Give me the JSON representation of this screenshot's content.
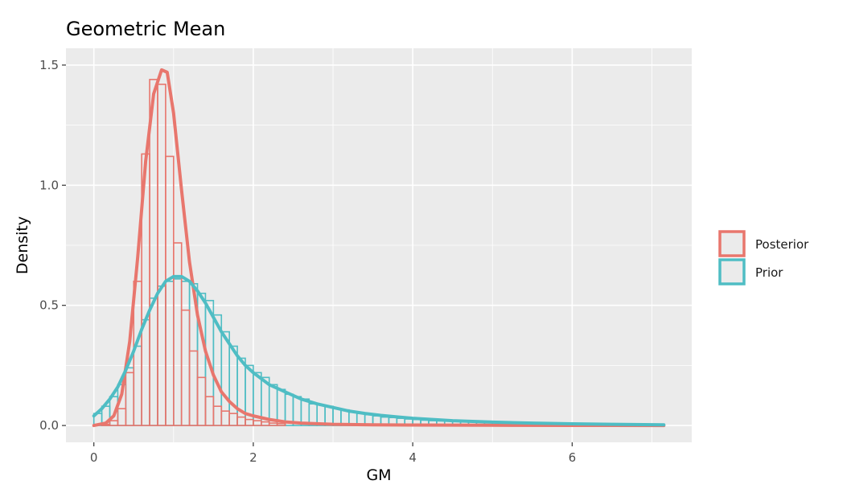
{
  "chart_data": {
    "type": "histogram-density",
    "title": "Geometric Mean",
    "xlabel": "GM",
    "ylabel": "Density",
    "xlim": [
      -0.35,
      7.5
    ],
    "ylim": [
      -0.07,
      1.57
    ],
    "x_ticks": [
      0,
      2,
      4,
      6
    ],
    "x_tick_labels": [
      "0",
      "2",
      "4",
      "6"
    ],
    "y_ticks": [
      0,
      0.5,
      1.0,
      1.5
    ],
    "y_tick_labels": [
      "0.0",
      "0.5",
      "1.0",
      "1.5"
    ],
    "grid": true,
    "legend_position": "right",
    "bin_width": 0.1,
    "series": [
      {
        "name": "Posterior",
        "color": "#E8766D",
        "hist": {
          "x0": [
            0.1,
            0.2,
            0.3,
            0.4,
            0.5,
            0.6,
            0.7,
            0.8,
            0.9,
            1.0,
            1.1,
            1.2,
            1.3,
            1.4,
            1.5,
            1.6,
            1.7,
            1.8,
            1.9,
            2.0,
            2.1,
            2.2,
            2.3
          ],
          "density": [
            0.005,
            0.02,
            0.07,
            0.22,
            0.6,
            1.13,
            1.44,
            1.42,
            1.12,
            0.76,
            0.48,
            0.31,
            0.2,
            0.12,
            0.08,
            0.06,
            0.05,
            0.035,
            0.025,
            0.02,
            0.015,
            0.01,
            0.008
          ]
        },
        "density_curve": {
          "x": [
            0.0,
            0.15,
            0.25,
            0.35,
            0.45,
            0.55,
            0.65,
            0.75,
            0.85,
            0.92,
            1.0,
            1.1,
            1.2,
            1.3,
            1.4,
            1.5,
            1.6,
            1.7,
            1.8,
            1.9,
            2.0,
            2.2,
            2.4,
            2.6,
            3.0,
            3.5,
            4.0,
            5.0,
            6.0,
            7.15
          ],
          "y": [
            0.0,
            0.01,
            0.04,
            0.13,
            0.35,
            0.7,
            1.1,
            1.38,
            1.48,
            1.47,
            1.3,
            0.98,
            0.68,
            0.46,
            0.31,
            0.21,
            0.14,
            0.1,
            0.07,
            0.05,
            0.04,
            0.025,
            0.015,
            0.01,
            0.005,
            0.003,
            0.002,
            0.001,
            0.0005,
            0.0
          ]
        }
      },
      {
        "name": "Prior",
        "color": "#4FBDC4",
        "hist": {
          "x0": [
            0.0,
            0.1,
            0.2,
            0.3,
            0.4,
            0.5,
            0.6,
            0.7,
            0.8,
            0.9,
            1.0,
            1.1,
            1.2,
            1.3,
            1.4,
            1.5,
            1.6,
            1.7,
            1.8,
            1.9,
            2.0,
            2.1,
            2.2,
            2.3,
            2.4,
            2.5,
            2.6,
            2.7,
            2.8,
            2.9,
            3.0,
            3.1,
            3.2,
            3.3,
            3.4,
            3.5,
            3.6,
            3.7,
            3.8,
            3.9,
            4.0,
            4.1,
            4.2,
            4.3,
            4.4,
            4.5,
            4.6,
            4.7,
            4.8,
            4.9,
            5.0,
            5.1,
            5.2,
            5.3,
            5.4,
            5.5,
            5.6,
            5.7,
            5.8,
            5.9,
            6.0,
            6.1,
            6.2,
            6.3,
            6.4,
            6.5,
            6.6,
            6.7,
            6.8,
            6.9,
            7.0
          ],
          "density": [
            0.05,
            0.08,
            0.12,
            0.17,
            0.24,
            0.33,
            0.44,
            0.53,
            0.58,
            0.6,
            0.61,
            0.6,
            0.59,
            0.55,
            0.52,
            0.46,
            0.39,
            0.33,
            0.28,
            0.25,
            0.22,
            0.2,
            0.17,
            0.15,
            0.13,
            0.12,
            0.11,
            0.09,
            0.085,
            0.08,
            0.07,
            0.065,
            0.055,
            0.05,
            0.045,
            0.04,
            0.035,
            0.033,
            0.03,
            0.027,
            0.025,
            0.022,
            0.02,
            0.019,
            0.018,
            0.017,
            0.016,
            0.015,
            0.014,
            0.013,
            0.012,
            0.011,
            0.01,
            0.009,
            0.009,
            0.008,
            0.008,
            0.007,
            0.007,
            0.006,
            0.006,
            0.006,
            0.005,
            0.005,
            0.005,
            0.004,
            0.004,
            0.004,
            0.004,
            0.003,
            0.003
          ]
        },
        "density_curve": {
          "x": [
            0.0,
            0.1,
            0.2,
            0.3,
            0.4,
            0.5,
            0.6,
            0.7,
            0.8,
            0.9,
            1.0,
            1.1,
            1.2,
            1.3,
            1.4,
            1.5,
            1.6,
            1.7,
            1.8,
            1.9,
            2.0,
            2.2,
            2.4,
            2.6,
            2.8,
            3.0,
            3.2,
            3.4,
            3.6,
            3.8,
            4.0,
            4.5,
            5.0,
            5.5,
            6.0,
            6.5,
            7.15
          ],
          "y": [
            0.04,
            0.07,
            0.11,
            0.16,
            0.23,
            0.31,
            0.4,
            0.48,
            0.55,
            0.6,
            0.62,
            0.62,
            0.6,
            0.56,
            0.51,
            0.45,
            0.39,
            0.34,
            0.29,
            0.25,
            0.22,
            0.17,
            0.14,
            0.11,
            0.09,
            0.075,
            0.06,
            0.05,
            0.042,
            0.036,
            0.03,
            0.02,
            0.014,
            0.01,
            0.007,
            0.005,
            0.003
          ]
        }
      }
    ]
  }
}
